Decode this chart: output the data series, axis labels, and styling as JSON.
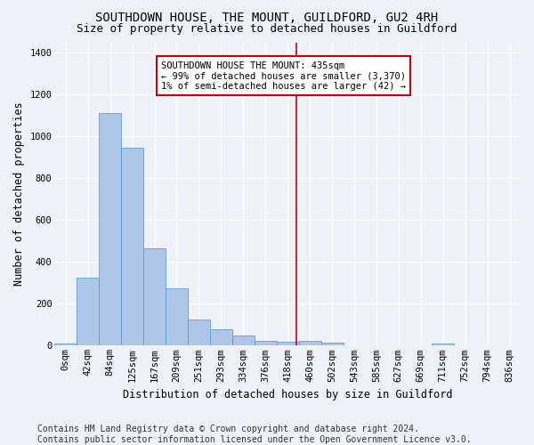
{
  "title": "SOUTHDOWN HOUSE, THE MOUNT, GUILDFORD, GU2 4RH",
  "subtitle": "Size of property relative to detached houses in Guildford",
  "xlabel": "Distribution of detached houses by size in Guildford",
  "ylabel": "Number of detached properties",
  "footer_line1": "Contains HM Land Registry data © Crown copyright and database right 2024.",
  "footer_line2": "Contains public sector information licensed under the Open Government Licence v3.0.",
  "categories": [
    "0sqm",
    "42sqm",
    "84sqm",
    "125sqm",
    "167sqm",
    "209sqm",
    "251sqm",
    "293sqm",
    "334sqm",
    "376sqm",
    "418sqm",
    "460sqm",
    "502sqm",
    "543sqm",
    "585sqm",
    "627sqm",
    "669sqm",
    "711sqm",
    "752sqm",
    "794sqm",
    "836sqm"
  ],
  "values": [
    10,
    325,
    1110,
    945,
    465,
    275,
    125,
    80,
    50,
    25,
    20,
    25,
    15,
    0,
    0,
    0,
    0,
    10,
    0,
    0,
    0
  ],
  "bar_color": "#aec6e8",
  "bar_edge_color": "#5a9fd4",
  "vline_color": "#cc0000",
  "annotation_title": "SOUTHDOWN HOUSE THE MOUNT: 435sqm",
  "annotation_line2": "← 99% of detached houses are smaller (3,370)",
  "annotation_line3": "1% of semi-detached houses are larger (42) →",
  "ylim": [
    0,
    1450
  ],
  "yticks": [
    0,
    200,
    400,
    600,
    800,
    1000,
    1200,
    1400
  ],
  "bg_color": "#eef2f8",
  "plot_bg_color": "#eef2f8",
  "grid_color": "#ffffff",
  "title_fontsize": 10,
  "subtitle_fontsize": 9,
  "axis_label_fontsize": 8.5,
  "tick_fontsize": 7.5,
  "footer_fontsize": 7,
  "annot_fontsize": 7.5
}
